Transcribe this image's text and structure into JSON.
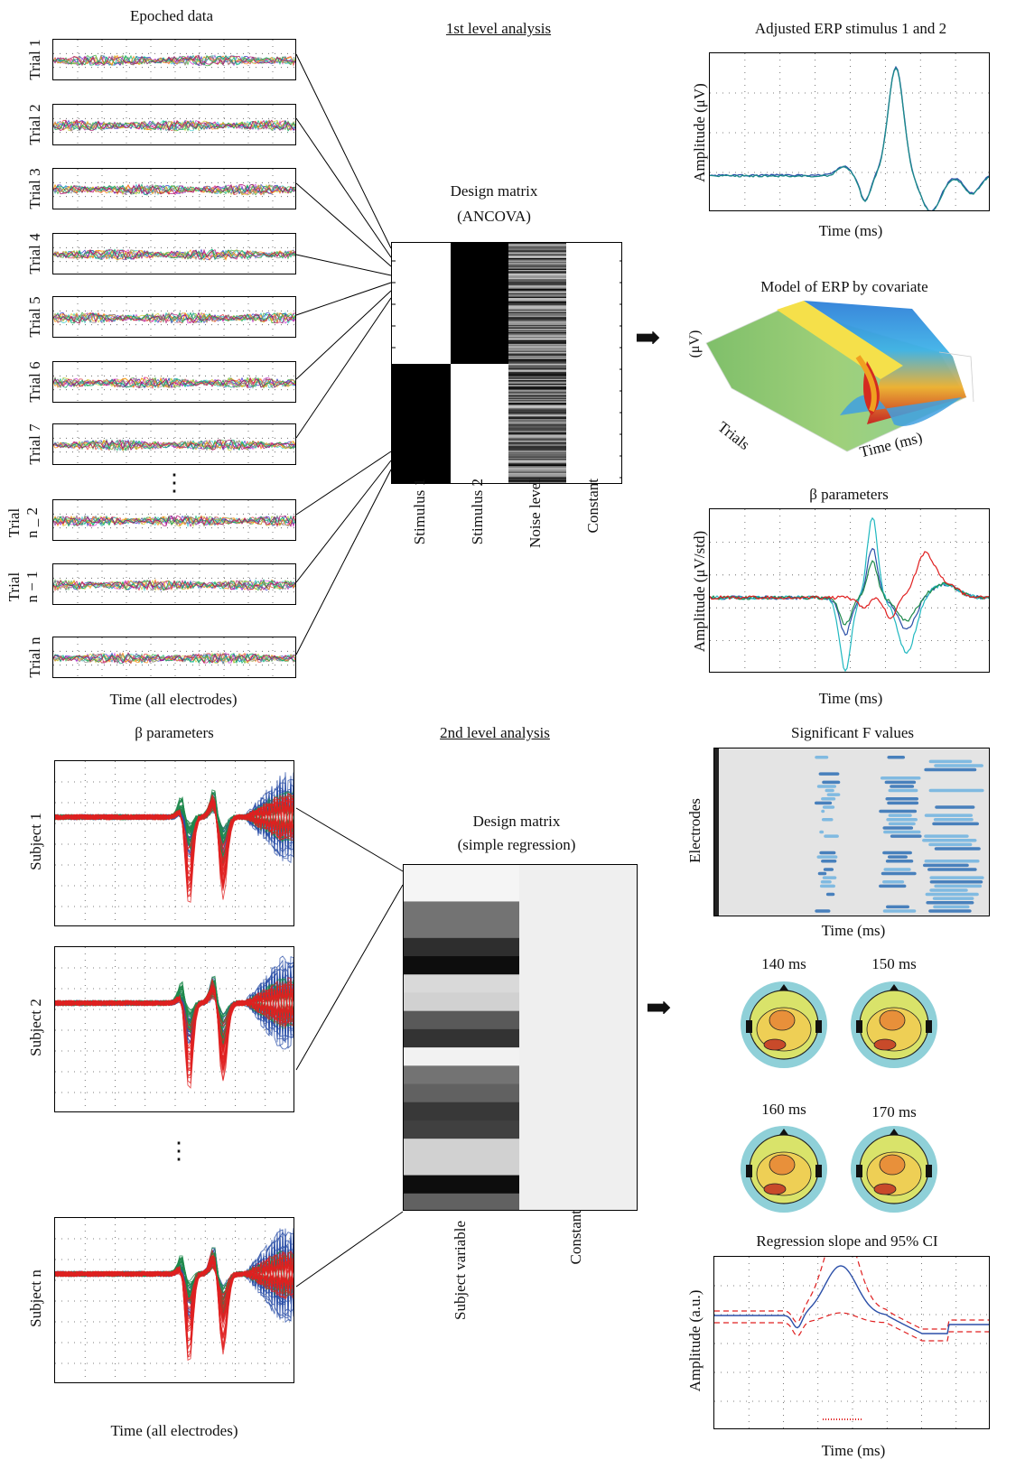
{
  "headers": {
    "epoched": "Epoched data",
    "first_level": "1st level analysis",
    "adjusted_erp": "Adjusted ERP stimulus 1 and 2",
    "model_erp": "Model of ERP by covariate",
    "beta_right": "β parameters",
    "beta_left": "β parameters",
    "second_level": "2nd level analysis",
    "sig_f": "Significant F values",
    "regression": "Regression slope and 95% CI"
  },
  "trials": [
    "Trial 1",
    "Trial 2",
    "Trial 3",
    "Trial 4",
    "Trial 5",
    "Trial 6",
    "Trial 7",
    "Trial\nn _ 2",
    "Trial\nn − 1",
    "Trial n"
  ],
  "trials_ellipsis": "⋮",
  "trials_xlabel": "Time (all electrodes)",
  "design1": {
    "title_line1": "Design matrix",
    "title_line2": "(ANCOVA)",
    "columns": [
      "Stimulus 1",
      "Stimulus 2",
      "Noise level",
      "Constant"
    ]
  },
  "design2": {
    "title_line1": "Design matrix",
    "title_line2": "(simple regression)",
    "columns": [
      "Subject variable",
      "Constant"
    ],
    "gray_levels": [
      0.96,
      0.96,
      0.45,
      0.45,
      0.18,
      0.05,
      0.85,
      0.82,
      0.35,
      0.2,
      0.95,
      0.45,
      0.38,
      0.22,
      0.25,
      0.82,
      0.82,
      0.05,
      0.38
    ]
  },
  "adjusted_erp_axes": {
    "ylabel": "Amplitude (μV)",
    "xlabel": "Time (ms)"
  },
  "model_axes": {
    "zlabel": "(μV)",
    "ylabel": "Trials",
    "xlabel": "Time (ms)"
  },
  "beta_right_axes": {
    "ylabel": "Amplitude (μV/std)",
    "xlabel": "Time (ms)"
  },
  "subjects": [
    "Subject 1",
    "Subject 2",
    "Subject n"
  ],
  "subjects_ellipsis": "⋮",
  "subjects_xlabel": "Time (all electrodes)",
  "sig_f_axes": {
    "ylabel": "Electrodes",
    "xlabel": "Time (ms)"
  },
  "topos": [
    "140 ms",
    "150 ms",
    "160 ms",
    "170 ms"
  ],
  "regression_axes": {
    "ylabel": "Amplitude (a.u.)",
    "xlabel": "Time (ms)"
  },
  "colors": {
    "red": "#e02020",
    "blue": "#2b4fa8",
    "green": "#1f8a4c",
    "cyan": "#20b8c0",
    "teal": "#1a8a8a"
  }
}
